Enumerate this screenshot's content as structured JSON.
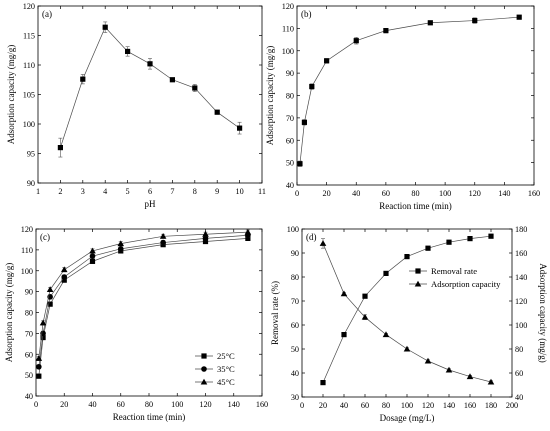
{
  "chart_data": [
    {
      "type": "line",
      "panel_label": "(a)",
      "xlabel": "pH",
      "ylabel": "Adsorption capacity (mg/g)",
      "xlim": [
        1,
        11
      ],
      "ylim": [
        90,
        120
      ],
      "xticks": [
        1,
        2,
        3,
        4,
        5,
        6,
        7,
        8,
        9,
        10,
        11
      ],
      "yticks": [
        90,
        95,
        100,
        105,
        110,
        115,
        120
      ],
      "series": [
        {
          "marker": "square",
          "x": [
            2,
            3,
            4,
            5,
            6,
            7,
            8,
            9,
            10
          ],
          "y": [
            96.0,
            107.6,
            116.4,
            112.3,
            110.2,
            107.5,
            106.1,
            102.0,
            99.3
          ],
          "err": [
            1.6,
            0.8,
            0.9,
            0.8,
            0.9,
            0.3,
            0.6,
            0.3,
            1.0
          ]
        }
      ]
    },
    {
      "type": "line",
      "panel_label": "(b)",
      "xlabel": "Reaction time (min)",
      "ylabel": "Adsorption capacity (mg/g)",
      "xlim": [
        0,
        160
      ],
      "ylim": [
        40,
        120
      ],
      "xticks": [
        0,
        20,
        40,
        60,
        80,
        100,
        120,
        140,
        160
      ],
      "yticks": [
        40,
        50,
        60,
        70,
        80,
        90,
        100,
        110,
        120
      ],
      "series": [
        {
          "marker": "square",
          "x": [
            2,
            5,
            10,
            20,
            40,
            60,
            90,
            120,
            150
          ],
          "y": [
            49.5,
            68.0,
            84.0,
            95.5,
            104.5,
            109.0,
            112.5,
            113.5,
            115.0
          ],
          "err": [
            1.2,
            1.2,
            1.2,
            1.0,
            1.5,
            1.0,
            0.6,
            1.2,
            0.8
          ]
        }
      ]
    },
    {
      "type": "line",
      "panel_label": "(c)",
      "xlabel": "Reaction time (min)",
      "ylabel": "Adsorption capacity (mg/g)",
      "xlim": [
        0,
        160
      ],
      "ylim": [
        40,
        120
      ],
      "xticks": [
        0,
        20,
        40,
        60,
        80,
        100,
        120,
        140,
        160
      ],
      "yticks": [
        40,
        50,
        60,
        70,
        80,
        90,
        100,
        110,
        120
      ],
      "legend_position": "bottom-right",
      "series": [
        {
          "name": "25°C",
          "marker": "square",
          "x": [
            2,
            5,
            10,
            20,
            40,
            60,
            90,
            120,
            150
          ],
          "y": [
            49.5,
            68.0,
            84.0,
            95.5,
            104.5,
            109.5,
            112.5,
            114.0,
            115.5
          ],
          "err": [
            1.0,
            1.0,
            1.0,
            1.0,
            1.0,
            1.0,
            1.0,
            1.0,
            1.0
          ]
        },
        {
          "name": "35°C",
          "marker": "circle",
          "x": [
            2,
            5,
            10,
            20,
            40,
            60,
            90,
            120,
            150
          ],
          "y": [
            54.0,
            70.0,
            87.5,
            97.0,
            107.0,
            110.5,
            113.5,
            115.5,
            117.0
          ],
          "err": [
            1.0,
            1.0,
            1.0,
            1.0,
            1.0,
            1.0,
            1.0,
            1.0,
            1.0
          ]
        },
        {
          "name": "45°C",
          "marker": "triangle",
          "x": [
            2,
            5,
            10,
            20,
            40,
            60,
            90,
            120,
            150
          ],
          "y": [
            58.0,
            75.0,
            91.0,
            100.5,
            109.5,
            113.0,
            116.5,
            117.5,
            118.5
          ],
          "err": [
            1.0,
            1.0,
            1.0,
            1.0,
            1.0,
            1.0,
            1.0,
            1.0,
            1.0
          ]
        }
      ]
    },
    {
      "type": "line",
      "panel_label": "(d)",
      "xlabel": "Dosage (mg/L)",
      "ylabel": "Removal rate (%)",
      "ylabel_right": "Adsorption capacity (mg/g)",
      "xlim": [
        0,
        200
      ],
      "ylim": [
        30,
        100
      ],
      "ylim_right": [
        40,
        180
      ],
      "xticks": [
        0,
        20,
        40,
        60,
        80,
        100,
        120,
        140,
        160,
        180,
        200
      ],
      "yticks": [
        30,
        40,
        50,
        60,
        70,
        80,
        90,
        100
      ],
      "yticks_right": [
        40,
        60,
        80,
        100,
        120,
        140,
        160,
        180
      ],
      "legend_position": "top-right",
      "series": [
        {
          "name": "Removal rate",
          "marker": "square",
          "axis": "left",
          "x": [
            20,
            40,
            60,
            80,
            100,
            120,
            140,
            160,
            180
          ],
          "y": [
            36.0,
            56.0,
            72.0,
            81.5,
            88.5,
            92.0,
            94.5,
            96.0,
            97.0
          ],
          "err": [
            0.6,
            0.5,
            0.8,
            0.6,
            0.6,
            0.4,
            0.4,
            0.4,
            0.4
          ]
        },
        {
          "name": "Adsorption capacity",
          "marker": "triangle",
          "axis": "right",
          "x": [
            20,
            40,
            60,
            80,
            100,
            120,
            140,
            160,
            180
          ],
          "y": [
            168.0,
            126.0,
            106.5,
            92.0,
            80.0,
            70.0,
            62.5,
            57.0,
            52.5
          ],
          "err": [
            4.0,
            1.0,
            2.0,
            1.0,
            1.0,
            1.0,
            1.0,
            1.0,
            1.0
          ]
        }
      ]
    }
  ]
}
